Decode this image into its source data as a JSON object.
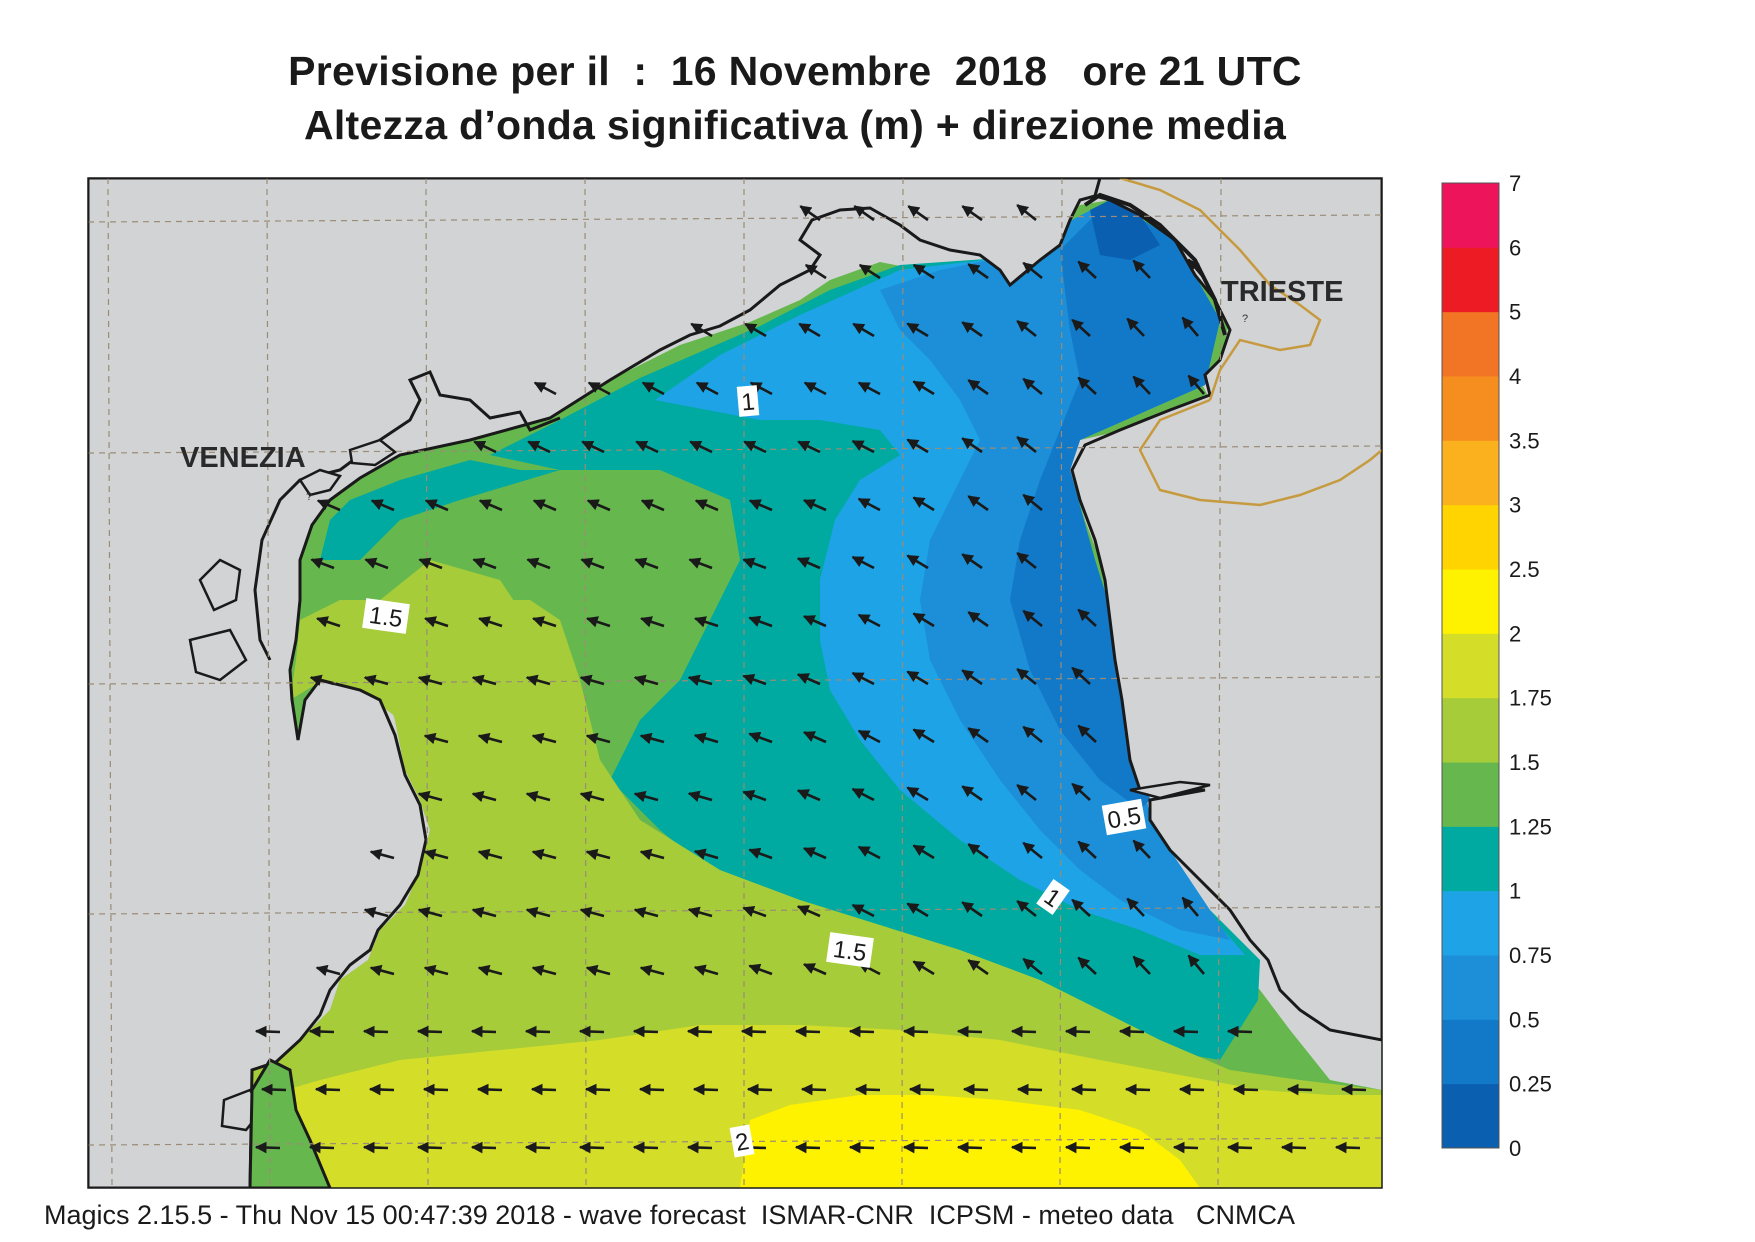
{
  "title_line1": "Previsione per il  :  16 Novembre  2018   ore 21 UTC",
  "title_line2": "Altezza d’onda significativa (m) + direzione media",
  "footer": "Magics 2.15.5 - Thu Nov 15 00:47:39 2018 - wave forecast  ISMAR-CNR  ICPSM - meteo data   CNMCA",
  "cities": [
    {
      "name": "VENEZIA"
    },
    {
      "name": "TRIESTE"
    }
  ],
  "contour_labels": [
    "1",
    "1.5",
    "0.5",
    "1",
    "1.5",
    "2"
  ],
  "legend": {
    "ticks": [
      "0",
      "0.25",
      "0.5",
      "0.75",
      "1",
      "1.25",
      "1.5",
      "1.75",
      "2",
      "2.5",
      "3",
      "3.5",
      "4",
      "5",
      "6",
      "7"
    ],
    "colors": [
      "#0a5fb0",
      "#1278c8",
      "#1c8fd8",
      "#1ea4e6",
      "#00aaa0",
      "#66b84e",
      "#a6cc3a",
      "#d4de28",
      "#fff200",
      "#ffd400",
      "#fbb11e",
      "#f68e1f",
      "#f27525",
      "#ed1c24",
      "#ed145b"
    ]
  },
  "wave_direction": "NE to SW (arrows pointing west-southwest)",
  "colors": {
    "land": "#d2d3d5",
    "coast": "#1a1a1a",
    "grid": "#9a8c76",
    "border": "#c69a3e",
    "arrow": "#1a1a1a"
  }
}
